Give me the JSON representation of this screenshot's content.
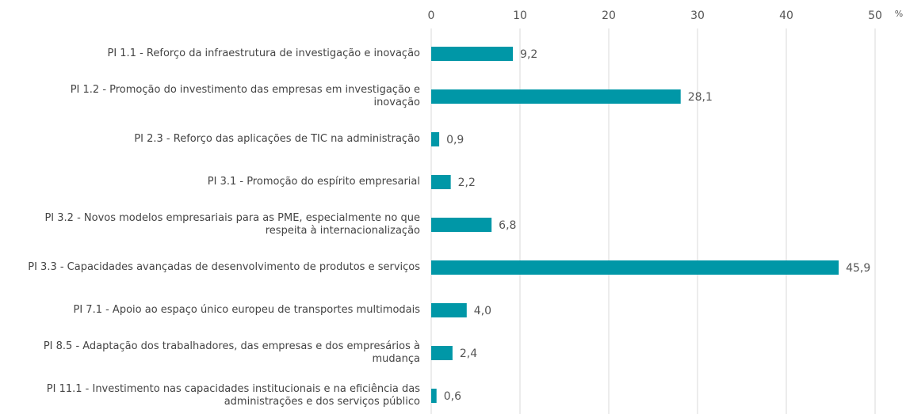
{
  "chart_data": {
    "type": "bar",
    "orientation": "horizontal",
    "x_label": "%",
    "categories": [
      "PI 1.1 - Reforço da infraestrutura de investigação e inovação",
      "PI 1.2 - Promoção do investimento das empresas em investigação e inovação",
      "PI 2.3 - Reforço das aplicações de TIC na administração",
      "PI 3.1 - Promoção do espírito empresarial",
      "PI 3.2 - Novos modelos empresariais para as PME, especialmente no que respeita à internacionalização",
      "PI 3.3 - Capacidades avançadas de desenvolvimento de produtos e serviços",
      "PI 7.1 - Apoio ao espaço único europeu de transportes multimodais",
      "PI 8.5 - Adaptação dos trabalhadores, das empresas e dos empresários à mudança",
      "PI 11.1 - Investimento nas capacidades institucionais e na eficiência das administrações e dos serviços público"
    ],
    "values": [
      9.2,
      28.1,
      0.9,
      2.2,
      6.8,
      45.9,
      4.0,
      2.4,
      0.6
    ],
    "value_labels": [
      "9,2",
      "28,1",
      "0,9",
      "2,2",
      "6,8",
      "45,9",
      "4,0",
      "2,4",
      "0,6"
    ],
    "color": "#0097a7",
    "xlim": [
      0,
      50
    ],
    "xticks": [
      0,
      10,
      20,
      30,
      40,
      50
    ],
    "grid": true
  }
}
